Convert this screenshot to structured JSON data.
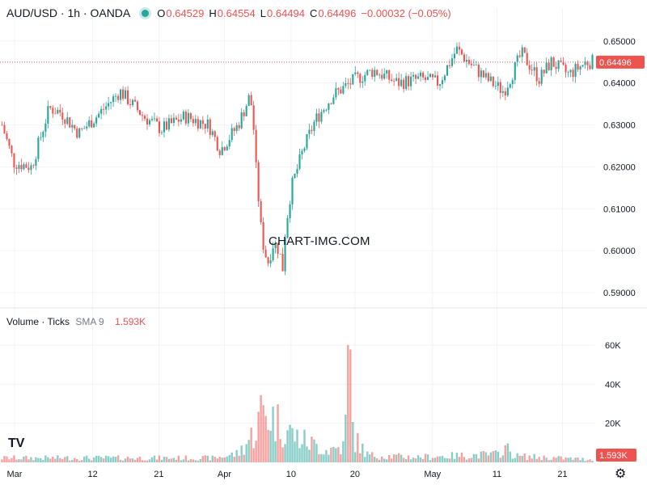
{
  "header": {
    "symbol": "AUD/USD · 1h · OANDA",
    "open_label": "O",
    "open": "0.64529",
    "high_label": "H",
    "high": "0.64554",
    "low_label": "L",
    "low": "0.64494",
    "close_label": "C",
    "close": "0.64496",
    "change": "−0.00032 (−0.05%)",
    "status_color": "#26a69a"
  },
  "volume_header": {
    "title": "Volume · Ticks",
    "sma": "SMA 9",
    "value": "1.593K"
  },
  "watermark": "CHART-IMG.COM",
  "logo": "TV",
  "settings_icon": "gear-icon",
  "colors": {
    "up": "#26a69a",
    "down": "#ef5350",
    "grid": "#f0f3fa"
  },
  "chart_data": {
    "type": "candlestick",
    "price_axis": {
      "ticks": [
        "0.65000",
        "0.64000",
        "0.63000",
        "0.62000",
        "0.61000",
        "0.60000",
        "0.59000"
      ],
      "range": [
        0.5875,
        0.654
      ]
    },
    "last_price_label": "0.64496",
    "last_price": 0.64496,
    "volume_axis": {
      "ticks": [
        "60K",
        "40K",
        "20K"
      ],
      "range": [
        0,
        72000
      ]
    },
    "last_volume_label": "1.593K",
    "x_ticks": [
      {
        "label": "Mar",
        "pos": 0.0
      },
      {
        "label": "12",
        "pos": 0.137
      },
      {
        "label": "21",
        "pos": 0.253
      },
      {
        "label": "Apr",
        "pos": 0.368
      },
      {
        "label": "10",
        "pos": 0.485
      },
      {
        "label": "20",
        "pos": 0.597
      },
      {
        "label": "May",
        "pos": 0.733
      },
      {
        "label": "11",
        "pos": 0.846
      },
      {
        "label": "21",
        "pos": 0.961
      }
    ],
    "price_path": [
      [
        0.0,
        0.63
      ],
      [
        0.02,
        0.621
      ],
      [
        0.05,
        0.62
      ],
      [
        0.08,
        0.634
      ],
      [
        0.1,
        0.633
      ],
      [
        0.13,
        0.628
      ],
      [
        0.16,
        0.632
      ],
      [
        0.2,
        0.638
      ],
      [
        0.24,
        0.632
      ],
      [
        0.27,
        0.629
      ],
      [
        0.31,
        0.632
      ],
      [
        0.35,
        0.63
      ],
      [
        0.37,
        0.624
      ],
      [
        0.4,
        0.63
      ],
      [
        0.42,
        0.637
      ],
      [
        0.425,
        0.632
      ],
      [
        0.43,
        0.62
      ],
      [
        0.44,
        0.603
      ],
      [
        0.45,
        0.597
      ],
      [
        0.46,
        0.602
      ],
      [
        0.47,
        0.6
      ],
      [
        0.475,
        0.595
      ],
      [
        0.48,
        0.605
      ],
      [
        0.49,
        0.615
      ],
      [
        0.51,
        0.624
      ],
      [
        0.53,
        0.631
      ],
      [
        0.56,
        0.637
      ],
      [
        0.6,
        0.641
      ],
      [
        0.63,
        0.643
      ],
      [
        0.67,
        0.64
      ],
      [
        0.71,
        0.641
      ],
      [
        0.74,
        0.64
      ],
      [
        0.77,
        0.648
      ],
      [
        0.79,
        0.645
      ],
      [
        0.82,
        0.641
      ],
      [
        0.85,
        0.638
      ],
      [
        0.88,
        0.647
      ],
      [
        0.91,
        0.641
      ],
      [
        0.93,
        0.645
      ],
      [
        0.96,
        0.642
      ],
      [
        0.99,
        0.645
      ],
      [
        1.0,
        0.645
      ]
    ],
    "volume_profile": [
      [
        0.0,
        2500
      ],
      [
        0.36,
        2500
      ],
      [
        0.4,
        5000
      ],
      [
        0.43,
        18000
      ],
      [
        0.44,
        30000
      ],
      [
        0.47,
        22000
      ],
      [
        0.5,
        14000
      ],
      [
        0.55,
        7000
      ],
      [
        0.58,
        9000
      ],
      [
        0.585,
        44000
      ],
      [
        0.588,
        68000
      ],
      [
        0.595,
        14000
      ],
      [
        0.62,
        4000
      ],
      [
        0.7,
        3000
      ],
      [
        0.84,
        4500
      ],
      [
        0.85,
        9000
      ],
      [
        0.87,
        3500
      ],
      [
        1.0,
        1593
      ]
    ]
  }
}
